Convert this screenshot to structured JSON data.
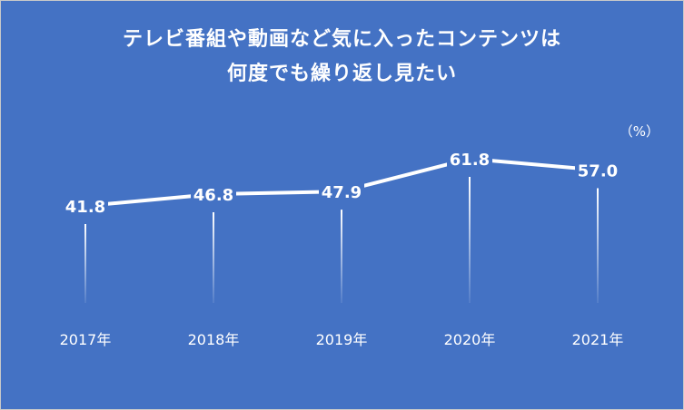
{
  "chart_data": {
    "type": "line",
    "title_lines": [
      "テレビ番組や動画など気に入ったコンテンツは",
      "何度でも繰り返し見たい"
    ],
    "unit": "（%）",
    "categories": [
      "2017年",
      "2018年",
      "2019年",
      "2020年",
      "2021年"
    ],
    "series": [
      {
        "values": [
          41.8,
          46.8,
          47.9,
          61.8,
          57.0
        ],
        "labels": [
          "41.8",
          "46.8",
          "47.9",
          "61.8",
          "57.0"
        ]
      }
    ],
    "grid": false,
    "legend": "none"
  },
  "colors": {
    "background": "#4472c4",
    "line": "#ffffff",
    "text": "#ffffff"
  }
}
